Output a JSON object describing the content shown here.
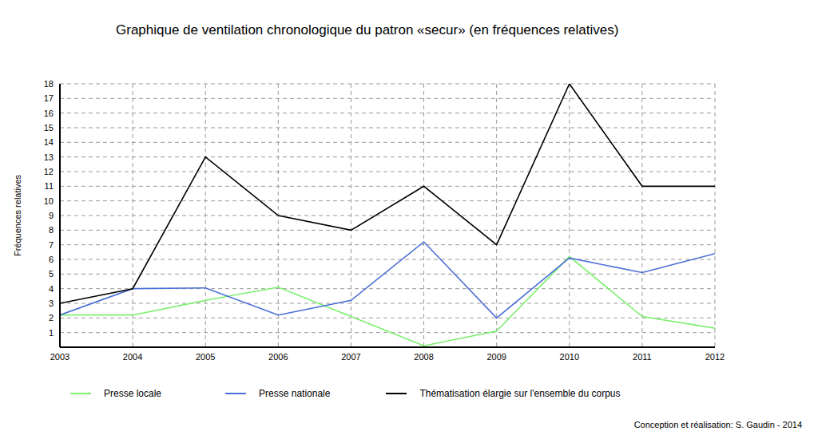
{
  "chart_data": {
    "type": "line",
    "title": "Graphique de ventilation chronologique du patron «secur» (en fréquences relatives)",
    "y_label": "Fréquences relatives",
    "annotation": "Conception et réalisation: S. Gaudin - 2014",
    "x": [
      2003,
      2004,
      2005,
      2006,
      2007,
      2008,
      2009,
      2010,
      2011,
      2012
    ],
    "xlim": [
      2003,
      2012
    ],
    "xticks": [
      2003,
      2004,
      2005,
      2006,
      2007,
      2008,
      2009,
      2010,
      2011,
      2012
    ],
    "ylim": [
      0,
      18
    ],
    "yticks": [
      1,
      2,
      3,
      4,
      5,
      6,
      7,
      8,
      9,
      10,
      11,
      12,
      13,
      14,
      15,
      16,
      17,
      18
    ],
    "grid": true,
    "series": [
      {
        "name": "Presse locale",
        "color": "#7cf06e",
        "values": [
          2.2,
          2.2,
          3.2,
          4.1,
          2.1,
          0.1,
          1.1,
          6.2,
          2.1,
          1.3
        ]
      },
      {
        "name": "Presse nationale",
        "color": "#4a6fd6",
        "values": [
          2.2,
          4,
          4.05,
          2.2,
          3.2,
          7.2,
          2,
          6.1,
          5.1,
          6.4
        ]
      },
      {
        "name": "Thématisation élargie sur l'ensemble du corpus",
        "color": "#000000",
        "values": [
          3,
          4,
          13,
          9,
          8,
          11,
          7,
          18,
          11,
          11
        ]
      }
    ]
  }
}
